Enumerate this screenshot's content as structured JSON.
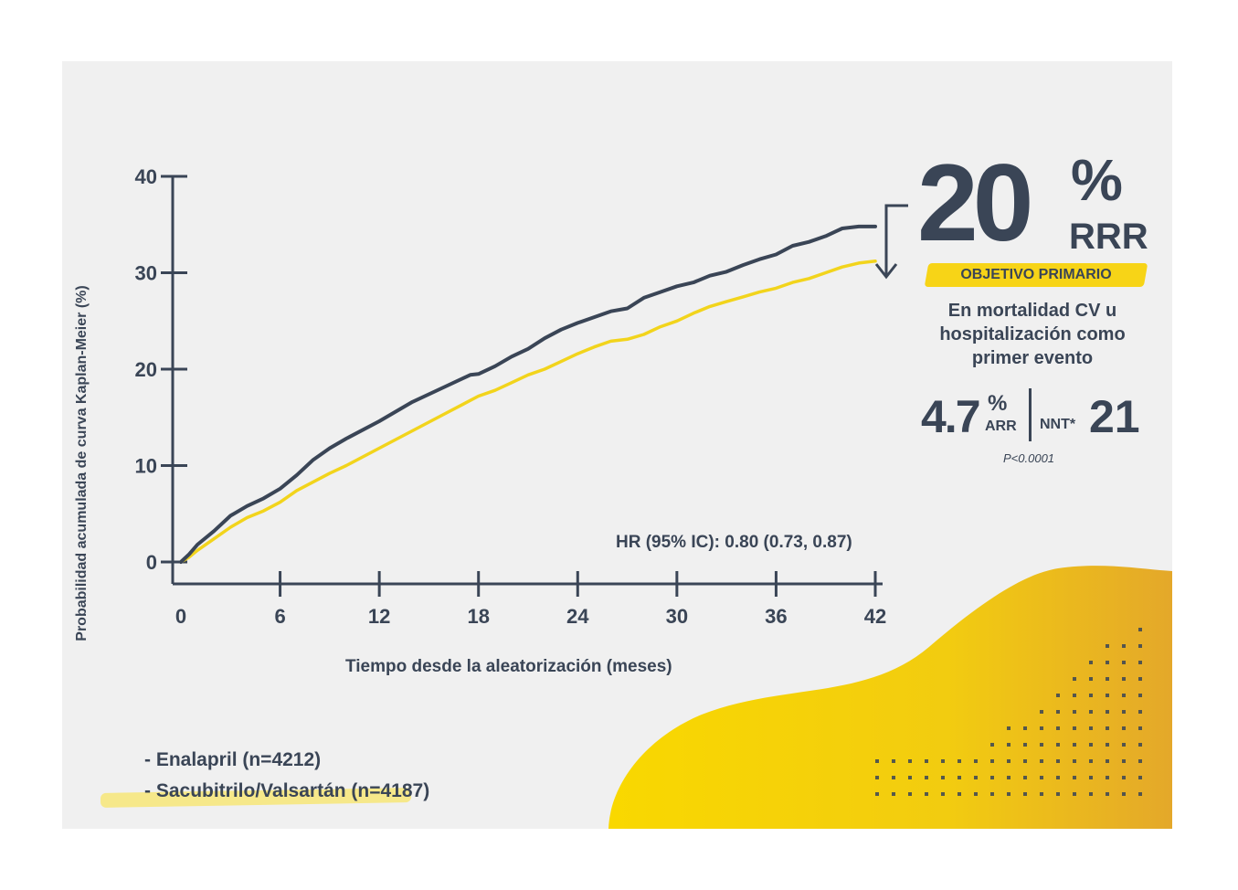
{
  "chart_data": {
    "type": "line",
    "xlabel": "Tiempo desde la aleatorización (meses)",
    "ylabel": "Probabilidad acumulada de curva Kaplan-Meier (%)",
    "x_ticks": [
      0,
      6,
      12,
      18,
      24,
      30,
      36,
      42
    ],
    "y_ticks": [
      0,
      10,
      20,
      30,
      40
    ],
    "xlim": [
      0,
      42
    ],
    "ylim": [
      0,
      40
    ],
    "grid": false,
    "legend_position": "bottom-left",
    "series": [
      {
        "name": "- Enalapril (n=4212)",
        "color": "#3a4556",
        "x": [
          0,
          0.5,
          1,
          2,
          3,
          4,
          5,
          6,
          7,
          8,
          9,
          10,
          12,
          14,
          16,
          17.5,
          18,
          19,
          20,
          21,
          22,
          23,
          24,
          26,
          27,
          28,
          29,
          30,
          31,
          32,
          33,
          34,
          35,
          36,
          37,
          38,
          39,
          40,
          41,
          42
        ],
        "values": [
          0,
          0.8,
          1.8,
          3.2,
          4.8,
          5.8,
          6.6,
          7.6,
          9.0,
          10.6,
          11.8,
          12.8,
          14.6,
          16.6,
          18.2,
          19.4,
          19.5,
          20.3,
          21.3,
          22.1,
          23.2,
          24.1,
          24.8,
          26.0,
          26.3,
          27.4,
          28.0,
          28.6,
          29.0,
          29.7,
          30.1,
          30.8,
          31.4,
          31.9,
          32.8,
          33.2,
          33.8,
          34.6,
          34.8,
          34.8
        ]
      },
      {
        "name": "- Sacubitrilo/Valsartán (n=4187)",
        "color": "#f2d41c",
        "x": [
          0,
          0.5,
          1,
          2,
          3,
          4,
          5,
          6,
          7,
          8,
          9,
          10,
          12,
          14,
          16,
          18,
          19,
          20,
          21,
          22,
          23,
          24,
          25,
          26,
          27,
          28,
          29,
          30,
          31,
          32,
          33,
          34,
          35,
          36,
          37,
          38,
          39,
          40,
          41,
          42
        ],
        "values": [
          0,
          0.5,
          1.2,
          2.4,
          3.6,
          4.6,
          5.3,
          6.2,
          7.4,
          8.3,
          9.2,
          10.0,
          11.8,
          13.6,
          15.4,
          17.2,
          17.8,
          18.6,
          19.4,
          20.0,
          20.8,
          21.6,
          22.3,
          22.9,
          23.1,
          23.6,
          24.4,
          25.0,
          25.8,
          26.5,
          27.0,
          27.5,
          28.0,
          28.4,
          29.0,
          29.4,
          30.0,
          30.6,
          31.0,
          31.2
        ]
      }
    ],
    "annotation": "HR (95% IC): 0.80 (0.73, 0.87)"
  },
  "callout": {
    "big_number": "20",
    "percent_sign": "%",
    "rrr_label": "RRR",
    "objective": "OBJETIVO PRIMARIO",
    "description": "En mortalidad CV u hospitalización como primer evento",
    "arr_value": "4.7",
    "arr_percent": "%",
    "arr_label": "ARR",
    "nnt_label": "NNT*",
    "nnt_value": "21",
    "p_value": "P<0.0001"
  },
  "colors": {
    "navy": "#3a4556",
    "yellow": "#f2d41c",
    "panel_bg": "#f0f0f0",
    "blob_start": "#f9d800",
    "blob_end": "#e4a82a"
  }
}
